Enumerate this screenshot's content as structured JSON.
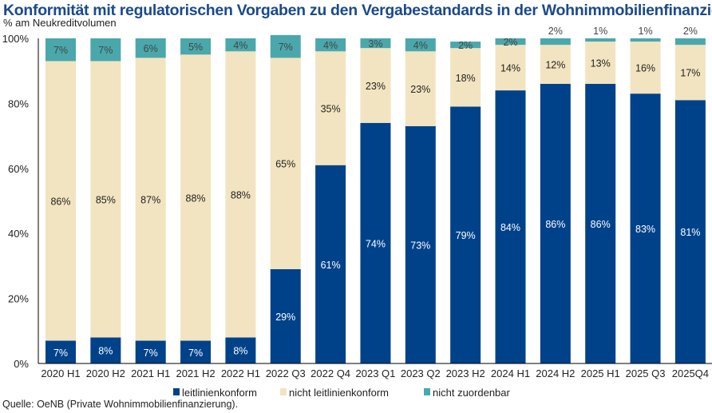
{
  "title": "Konformität mit regulatorischen Vorgaben zu den Vergabestandards in der Wohnimmobilienfinanzierung",
  "subtitle": "% am Neukreditvolumen",
  "source": "Quelle: OeNB (Private Wohnimmobilienfinanzierung).",
  "chart_data": {
    "type": "bar",
    "stacked": true,
    "title": "Konformität mit regulatorischen Vorgaben zu den Vergabestandards in der Wohnimmobilienfinanzierung",
    "ylabel": "% am Neukreditvolumen",
    "ylim": [
      0,
      100
    ],
    "yticks": [
      "0%",
      "20%",
      "40%",
      "60%",
      "80%",
      "100%"
    ],
    "grid": false,
    "legend": "bottom",
    "categories": [
      "2020 H1",
      "2020 H2",
      "2021 H1",
      "2021 H2",
      "2022 H1",
      "2022 Q3",
      "2022 Q4",
      "2023 Q1",
      "2023 Q2",
      "2023 H2",
      "2024 H1",
      "2024 H2",
      "2025 H1",
      "2025 Q3",
      "2025Q4"
    ],
    "series": [
      {
        "name": "leitlinienkonform",
        "color": "#00428a",
        "values": [
          7,
          8,
          7,
          7,
          8,
          29,
          61,
          74,
          73,
          79,
          84,
          86,
          86,
          83,
          81
        ]
      },
      {
        "name": "nicht leitlinienkonform",
        "color": "#f2e4c0",
        "values": [
          86,
          85,
          87,
          88,
          88,
          65,
          35,
          23,
          23,
          18,
          14,
          12,
          13,
          16,
          17
        ]
      },
      {
        "name": "nicht zuordenbar",
        "color": "#4aa8ac",
        "values": [
          7,
          7,
          6,
          5,
          4,
          7,
          4,
          3,
          4,
          2,
          2,
          2,
          1,
          1,
          2
        ]
      }
    ]
  }
}
